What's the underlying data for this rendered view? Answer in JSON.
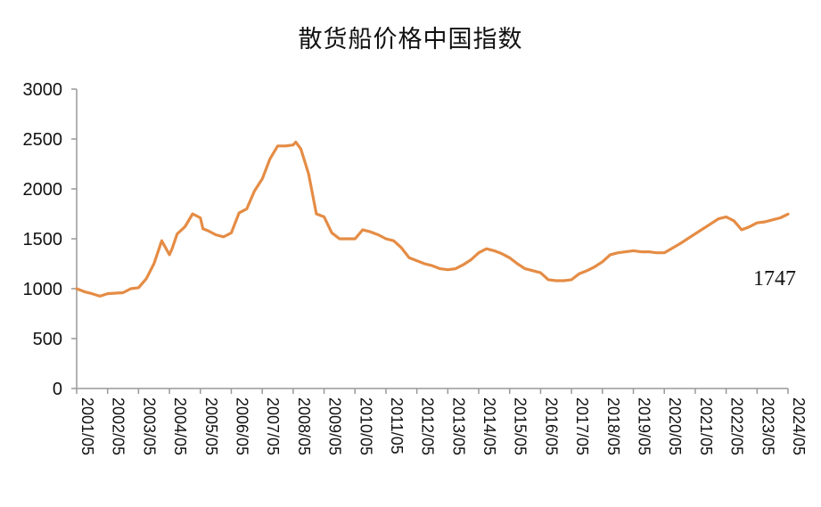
{
  "chart_data": {
    "type": "line",
    "title": "散货船价格中国指数",
    "xlabel": "",
    "ylabel": "",
    "ylim": [
      0,
      3000
    ],
    "yticks": [
      0,
      500,
      1000,
      1500,
      2000,
      2500,
      3000
    ],
    "xticks": [
      "2001/05",
      "2002/05",
      "2003/05",
      "2004/05",
      "2005/05",
      "2006/05",
      "2007/05",
      "2008/05",
      "2009/05",
      "2010/05",
      "2011/05",
      "2012/05",
      "2013/05",
      "2014/05",
      "2015/05",
      "2016/05",
      "2017/05",
      "2018/05",
      "2019/05",
      "2020/05",
      "2021/05",
      "2022/05",
      "2023/05",
      "2024/05"
    ],
    "grid": false,
    "line_color": "#E58C45",
    "end_label": "1747",
    "series": [
      {
        "x": [
          "2001/05",
          "2001/08",
          "2001/11",
          "2002/02",
          "2002/05",
          "2002/08",
          "2002/11",
          "2003/02",
          "2003/05",
          "2003/08",
          "2003/11",
          "2004/02",
          "2004/05",
          "2004/06",
          "2004/08",
          "2004/11",
          "2005/02",
          "2005/05",
          "2005/06",
          "2005/08",
          "2005/11",
          "2006/02",
          "2006/05",
          "2006/08",
          "2006/11",
          "2007/02",
          "2007/05",
          "2007/08",
          "2007/11",
          "2008/02",
          "2008/05",
          "2008/06",
          "2008/08",
          "2008/11",
          "2009/02",
          "2009/05",
          "2009/08",
          "2009/11",
          "2010/02",
          "2010/05",
          "2010/08",
          "2010/11",
          "2011/02",
          "2011/05",
          "2011/08",
          "2011/11",
          "2012/02",
          "2012/05",
          "2012/08",
          "2012/11",
          "2013/02",
          "2013/05",
          "2013/08",
          "2013/11",
          "2014/02",
          "2014/05",
          "2014/08",
          "2014/11",
          "2015/02",
          "2015/05",
          "2015/08",
          "2015/11",
          "2016/02",
          "2016/05",
          "2016/08",
          "2016/11",
          "2017/02",
          "2017/05",
          "2017/08",
          "2017/11",
          "2018/02",
          "2018/05",
          "2018/08",
          "2018/11",
          "2019/02",
          "2019/05",
          "2019/08",
          "2019/11",
          "2020/02",
          "2020/05",
          "2020/11",
          "2021/05",
          "2021/11",
          "2022/02",
          "2022/05",
          "2022/08",
          "2022/11",
          "2023/02",
          "2023/05",
          "2023/08",
          "2023/11",
          "2024/02",
          "2024/05"
        ],
        "values": [
          1000,
          970,
          950,
          925,
          950,
          955,
          960,
          1000,
          1010,
          1100,
          1250,
          1480,
          1340,
          1400,
          1550,
          1620,
          1750,
          1710,
          1600,
          1580,
          1540,
          1520,
          1560,
          1760,
          1800,
          1980,
          2100,
          2300,
          2430,
          2430,
          2440,
          2470,
          2400,
          2150,
          1750,
          1720,
          1560,
          1500,
          1500,
          1500,
          1590,
          1570,
          1540,
          1500,
          1480,
          1410,
          1310,
          1280,
          1250,
          1230,
          1200,
          1190,
          1200,
          1240,
          1290,
          1360,
          1400,
          1380,
          1350,
          1310,
          1250,
          1200,
          1180,
          1160,
          1090,
          1080,
          1080,
          1090,
          1150,
          1180,
          1220,
          1270,
          1340,
          1360,
          1370,
          1380,
          1370,
          1370,
          1360,
          1360,
          1450,
          1550,
          1650,
          1700,
          1720,
          1680,
          1590,
          1620,
          1660,
          1670,
          1690,
          1710,
          1747
        ]
      }
    ]
  }
}
